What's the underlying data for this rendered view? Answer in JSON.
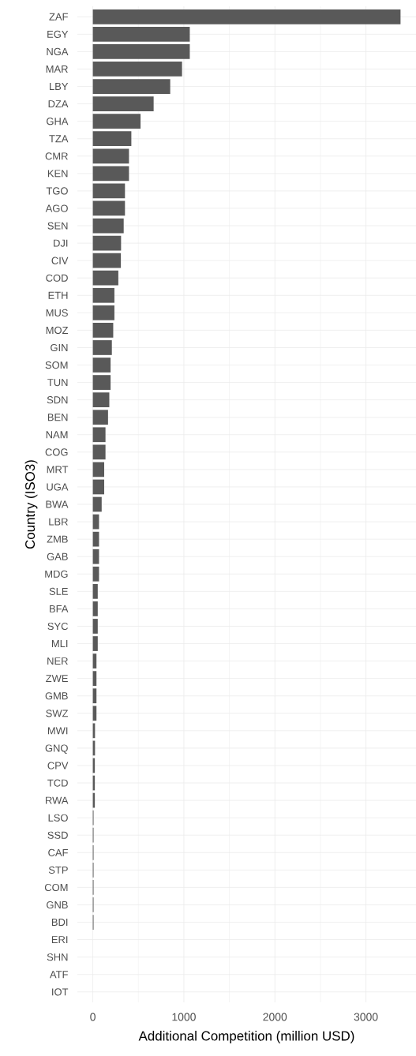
{
  "chart_data": {
    "type": "bar",
    "orientation": "horizontal",
    "xlabel": "Additional Competition (million USD)",
    "ylabel": "Country (ISO3)",
    "categories": [
      "ZAF",
      "EGY",
      "NGA",
      "MAR",
      "LBY",
      "DZA",
      "GHA",
      "TZA",
      "CMR",
      "KEN",
      "TGO",
      "AGO",
      "SEN",
      "DJI",
      "CIV",
      "COD",
      "ETH",
      "MUS",
      "MOZ",
      "GIN",
      "SOM",
      "TUN",
      "SDN",
      "BEN",
      "NAM",
      "COG",
      "MRT",
      "UGA",
      "BWA",
      "LBR",
      "ZMB",
      "GAB",
      "MDG",
      "SLE",
      "BFA",
      "SYC",
      "MLI",
      "NER",
      "ZWE",
      "GMB",
      "SWZ",
      "MWI",
      "GNQ",
      "CPV",
      "TCD",
      "RWA",
      "LSO",
      "SSD",
      "CAF",
      "STP",
      "COM",
      "GNB",
      "BDI",
      "ERI",
      "SHN",
      "ATF",
      "IOT"
    ],
    "values": [
      3380,
      1065,
      1065,
      980,
      850,
      668,
      524,
      423,
      397,
      397,
      353,
      353,
      339,
      310,
      308,
      280,
      237,
      237,
      224,
      209,
      195,
      195,
      181,
      167,
      139,
      139,
      125,
      125,
      97,
      68,
      68,
      68,
      68,
      54,
      54,
      54,
      54,
      40,
      40,
      40,
      40,
      24,
      24,
      22,
      22,
      22,
      8,
      8,
      8,
      8,
      8,
      8,
      8,
      0,
      0,
      0,
      0
    ],
    "color": "#595959",
    "xlim": [
      -170,
      3550
    ],
    "xticks": [
      0,
      1000,
      2000,
      3000
    ],
    "grid": true
  }
}
